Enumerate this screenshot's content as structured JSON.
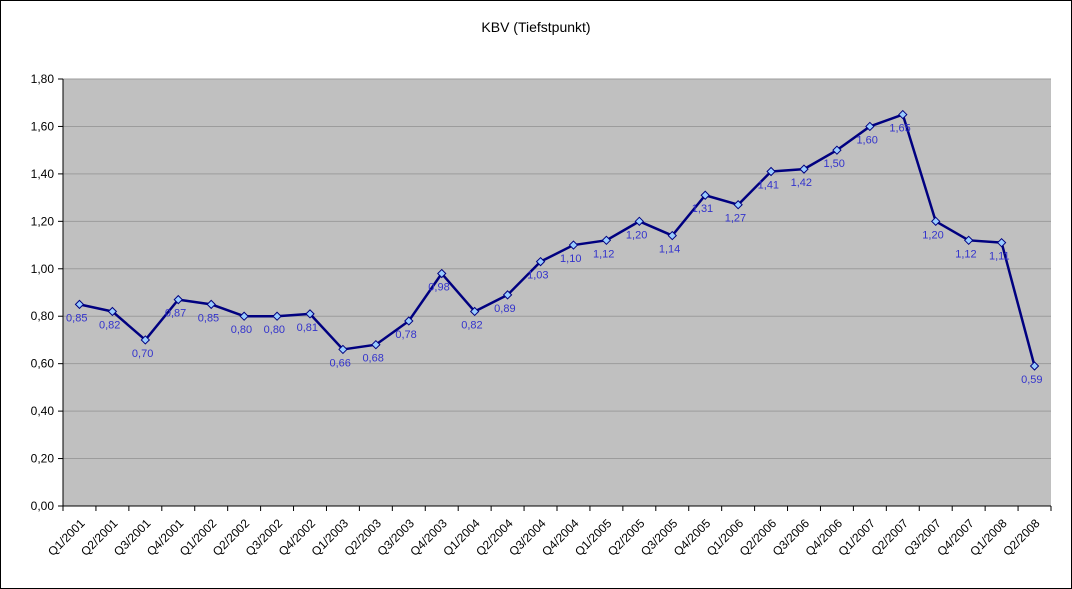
{
  "chart_data": {
    "type": "line",
    "title": "KBV (Tiefstpunkt)",
    "categories": [
      "Q1/2001",
      "Q2/2001",
      "Q3/2001",
      "Q4/2001",
      "Q1/2002",
      "Q2/2002",
      "Q3/2002",
      "Q4/2002",
      "Q1/2003",
      "Q2/2003",
      "Q3/2003",
      "Q4/2003",
      "Q1/2004",
      "Q2/2004",
      "Q3/2004",
      "Q4/2004",
      "Q1/2005",
      "Q2/2005",
      "Q3/2005",
      "Q4/2005",
      "Q1/2006",
      "Q2/2006",
      "Q3/2006",
      "Q4/2006",
      "Q1/2007",
      "Q2/2007",
      "Q3/2007",
      "Q4/2007",
      "Q1/2008",
      "Q2/2008"
    ],
    "values": [
      0.85,
      0.82,
      0.7,
      0.87,
      0.85,
      0.8,
      0.8,
      0.81,
      0.66,
      0.68,
      0.78,
      0.98,
      0.82,
      0.89,
      1.03,
      1.1,
      1.12,
      1.2,
      1.14,
      1.31,
      1.27,
      1.41,
      1.42,
      1.5,
      1.6,
      1.65,
      1.2,
      1.12,
      1.11,
      0.59
    ],
    "point_labels": [
      "0,85",
      "0,82",
      "0,70",
      "0,87",
      "0,85",
      "0,80",
      "0,80",
      "0,81",
      "0,66",
      "0,68",
      "0,78",
      "0,98",
      "0,82",
      "0,89",
      "1,03",
      "1,10",
      "1,12",
      "1,20",
      "1,14",
      "1,31",
      "1,27",
      "1,41",
      "1,42",
      "1,50",
      "1,60",
      "1,65",
      "1,20",
      "1,12",
      "1,11",
      "0,59"
    ],
    "ylim": [
      0,
      1.8
    ],
    "ytick_step": 0.2,
    "ytick_labels": [
      "0,00",
      "0,20",
      "0,40",
      "0,60",
      "0,80",
      "1,00",
      "1,20",
      "1,40",
      "1,60",
      "1,80"
    ],
    "xlabel": "",
    "ylabel": "",
    "grid": true,
    "legend": "none",
    "colors": {
      "line": "#000080",
      "marker_fill": "#99CCFF",
      "marker_stroke": "#000080",
      "plot_background": "#C0C0C0",
      "gridline": "#9c9c9c",
      "axis": "#000000",
      "data_label": "#3333CC",
      "axis_label": "#000000"
    }
  }
}
